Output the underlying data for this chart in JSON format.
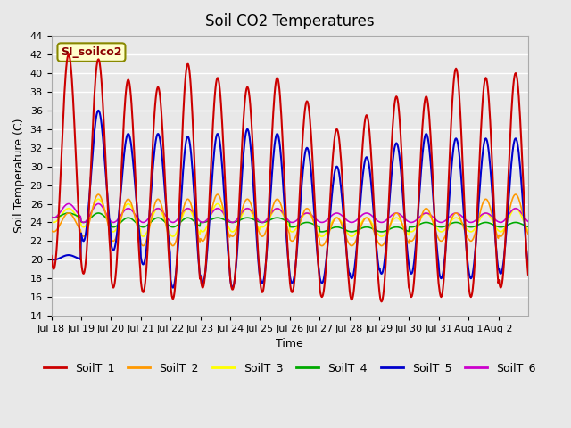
{
  "title": "Soil CO2 Temperatures",
  "xlabel": "Time",
  "ylabel": "Soil Temperature (C)",
  "ylim": [
    14,
    44
  ],
  "yticks": [
    14,
    16,
    18,
    20,
    22,
    24,
    26,
    28,
    30,
    32,
    34,
    36,
    38,
    40,
    42,
    44
  ],
  "xtick_labels": [
    "Jul 18",
    "Jul 19",
    "Jul 20",
    "Jul 21",
    "Jul 22",
    "Jul 23",
    "Jul 24",
    "Jul 25",
    "Jul 26",
    "Jul 27",
    "Jul 28",
    "Jul 29",
    "Jul 30",
    "Jul 31",
    "Aug 1",
    "Aug 2"
  ],
  "legend_label": "SI_soilco2",
  "series_colors": {
    "SoilT_1": "#cc0000",
    "SoilT_2": "#ff9900",
    "SoilT_3": "#ffff00",
    "SoilT_4": "#00aa00",
    "SoilT_5": "#0000cc",
    "SoilT_6": "#cc00cc"
  },
  "background_color": "#e8e8e8",
  "plot_bg_color": "#e8e8e8",
  "grid_color": "#ffffff",
  "n_days": 16,
  "points_per_day": 48,
  "SoilT_1_peaks": [
    42.0,
    41.5,
    39.3,
    38.5,
    41.0,
    39.5,
    38.5,
    39.5,
    37.0,
    34.0,
    35.5,
    37.5,
    37.5,
    40.5,
    39.5,
    40.0
  ],
  "SoilT_1_troughs": [
    19.0,
    18.5,
    17.0,
    16.5,
    15.8,
    17.0,
    16.8,
    16.5,
    16.5,
    16.0,
    15.7,
    15.5,
    16.0,
    16.0,
    16.0,
    17.0
  ],
  "SoilT_5_peaks": [
    20.5,
    36.0,
    33.5,
    33.5,
    33.2,
    33.5,
    34.0,
    33.5,
    32.0,
    30.0,
    31.0,
    32.5,
    33.5,
    33.0,
    33.0,
    33.0
  ],
  "SoilT_5_troughs": [
    20.0,
    22.0,
    21.0,
    19.5,
    17.0,
    17.5,
    17.0,
    17.5,
    17.5,
    17.5,
    18.0,
    18.5,
    18.5,
    18.0,
    18.0,
    18.5
  ],
  "SoilT_2_peaks": [
    25.0,
    27.0,
    26.5,
    26.5,
    26.5,
    27.0,
    26.5,
    26.5,
    25.5,
    24.5,
    24.5,
    25.0,
    25.5,
    25.0,
    26.5,
    27.0
  ],
  "SoilT_2_troughs": [
    23.0,
    22.5,
    22.0,
    21.5,
    21.5,
    22.0,
    22.5,
    22.5,
    22.0,
    21.5,
    21.5,
    21.5,
    22.0,
    22.0,
    22.0,
    22.5
  ],
  "SoilT_3_peaks": [
    25.5,
    26.5,
    26.0,
    25.5,
    25.5,
    26.0,
    25.5,
    25.5,
    25.0,
    24.5,
    24.5,
    24.5,
    25.0,
    24.5,
    25.0,
    25.5
  ],
  "SoilT_3_troughs": [
    24.0,
    23.5,
    23.0,
    22.5,
    22.5,
    23.0,
    23.0,
    23.5,
    23.0,
    22.5,
    22.5,
    22.5,
    23.0,
    23.0,
    23.0,
    23.0
  ],
  "SoilT_4_peaks": [
    25.0,
    25.0,
    24.5,
    24.5,
    24.5,
    24.5,
    24.5,
    24.5,
    24.0,
    23.5,
    23.5,
    23.5,
    24.0,
    24.0,
    24.0,
    24.0
  ],
  "SoilT_4_troughs": [
    24.5,
    24.0,
    23.5,
    23.5,
    23.5,
    24.0,
    24.0,
    24.0,
    23.5,
    23.0,
    23.0,
    23.0,
    23.5,
    23.5,
    23.5,
    23.5
  ],
  "SoilT_6_peaks": [
    26.0,
    26.0,
    25.5,
    25.5,
    25.5,
    25.5,
    25.5,
    25.5,
    25.0,
    25.0,
    25.0,
    25.0,
    25.0,
    25.0,
    25.0,
    25.5
  ],
  "SoilT_6_troughs": [
    24.5,
    24.0,
    24.0,
    24.0,
    24.0,
    24.0,
    24.0,
    24.0,
    24.0,
    24.0,
    24.0,
    24.0,
    24.0,
    24.0,
    24.0,
    24.0
  ]
}
